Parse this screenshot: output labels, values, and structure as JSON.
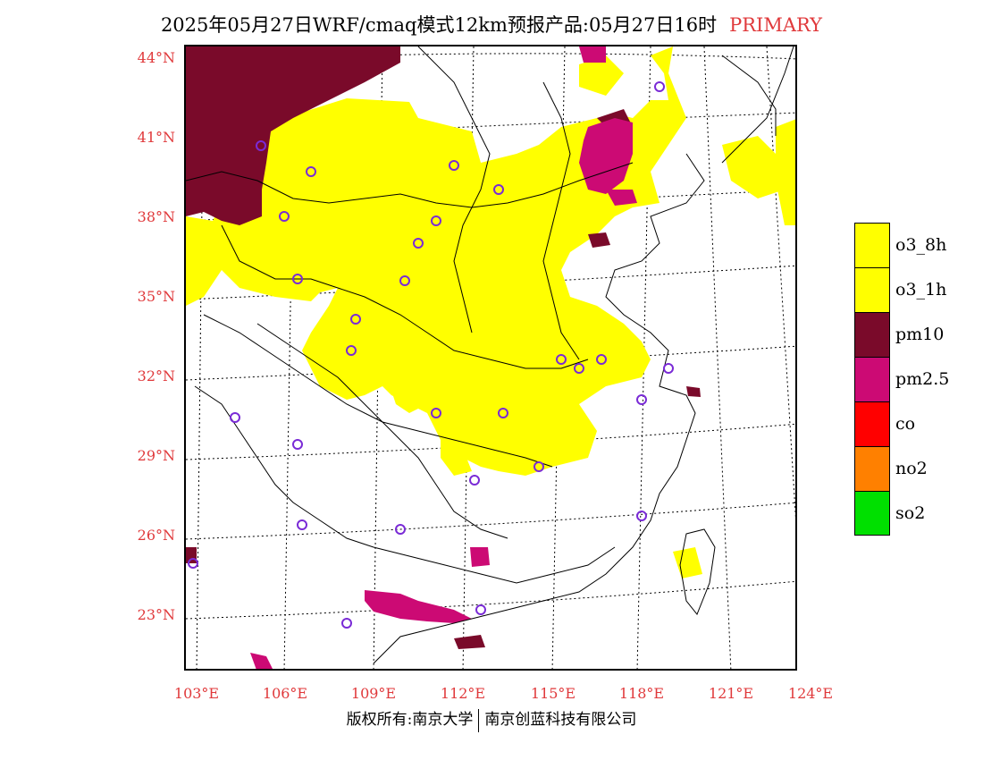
{
  "header": {
    "title": "2025年05月27日WRF/cmaq模式12km预报产品:05月27日16时",
    "tag": "PRIMARY"
  },
  "map": {
    "lat_labels": [
      "44°N",
      "41°N",
      "38°N",
      "35°N",
      "32°N",
      "29°N",
      "26°N",
      "23°N"
    ],
    "lon_labels": [
      "103°E",
      "106°E",
      "109°E",
      "112°E",
      "115°E",
      "118°E",
      "121°E",
      "124°E"
    ]
  },
  "legend": {
    "items": [
      {
        "label": "o3_8h",
        "color": "#ffff00"
      },
      {
        "label": "o3_1h",
        "color": "#ffff00"
      },
      {
        "label": "pm10",
        "color": "#7a0a2a"
      },
      {
        "label": "pm2.5",
        "color": "#cc0a74"
      },
      {
        "label": "co",
        "color": "#ff0000"
      },
      {
        "label": "no2",
        "color": "#ff8000"
      },
      {
        "label": "so2",
        "color": "#00e000"
      }
    ]
  },
  "footer": {
    "left": "版权所有:南京大学",
    "right": "南京创蓝科技有限公司"
  },
  "colors": {
    "o3": "#ffff00",
    "pm10": "#7a0a2a",
    "pm25": "#cc0a74",
    "station_marker": "#7a2bd6",
    "axis_label": "#e0393b"
  }
}
